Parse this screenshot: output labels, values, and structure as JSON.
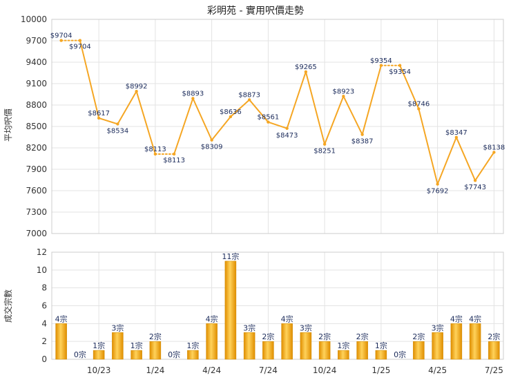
{
  "chart_data": [
    {
      "type": "line",
      "title": "彩明苑 - 實用呎價走勢",
      "ylabel": "平均呎價",
      "ylim": [
        7000,
        10000
      ],
      "yticks": [
        7000,
        7300,
        7600,
        7900,
        8200,
        8500,
        8800,
        9100,
        9400,
        9700,
        10000
      ],
      "grid": true,
      "values": [
        9704,
        9704,
        8617,
        8534,
        8992,
        8113,
        8113,
        8893,
        8309,
        8636,
        8873,
        8561,
        8473,
        9265,
        8251,
        8923,
        8387,
        9354,
        9354,
        8746,
        7692,
        8347,
        7743,
        8138
      ],
      "labels": [
        "$9704",
        "$9704",
        "$8617",
        "$8534",
        "$8992",
        "$8113",
        "$8113",
        "$8893",
        "$8309",
        "$8636",
        "$8873",
        "$8561",
        "$8473",
        "$9265",
        "$8251",
        "$8923",
        "$8387",
        "$9354",
        "$9354",
        "$8746",
        "$7692",
        "$8347",
        "$7743",
        "$8138"
      ],
      "color": "#f5a623"
    },
    {
      "type": "bar",
      "ylabel": "成交宗數",
      "ylim": [
        0,
        12
      ],
      "yticks": [
        0,
        2,
        4,
        6,
        8,
        10,
        12
      ],
      "grid": true,
      "values": [
        4,
        0,
        1,
        3,
        1,
        2,
        0,
        1,
        4,
        11,
        3,
        2,
        4,
        3,
        2,
        1,
        2,
        1,
        0,
        2,
        3,
        4,
        4,
        2
      ],
      "labels": [
        "4宗",
        "0宗",
        "1宗",
        "3宗",
        "1宗",
        "2宗",
        "0宗",
        "1宗",
        "4宗",
        "11宗",
        "3宗",
        "2宗",
        "4宗",
        "3宗",
        "2宗",
        "1宗",
        "2宗",
        "1宗",
        "0宗",
        "2宗",
        "3宗",
        "4宗",
        "4宗",
        "2宗"
      ],
      "xticks": [
        {
          "label": "10/23",
          "index": 2
        },
        {
          "label": "1/24",
          "index": 5
        },
        {
          "label": "4/24",
          "index": 8
        },
        {
          "label": "7/24",
          "index": 11
        },
        {
          "label": "10/24",
          "index": 14
        },
        {
          "label": "1/25",
          "index": 17
        },
        {
          "label": "4/25",
          "index": 20
        },
        {
          "label": "7/25",
          "index": 23
        }
      ],
      "color": "#f0a500"
    }
  ]
}
